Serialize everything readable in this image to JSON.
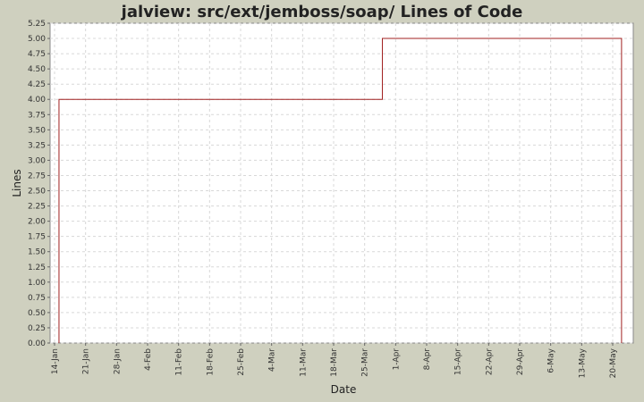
{
  "chart_data": {
    "type": "line",
    "title": "jalview: src/ext/jemboss/soap/ Lines of Code",
    "xlabel": "Date",
    "ylabel": "Lines",
    "ylim": [
      0,
      5.25
    ],
    "y_ticks": [
      "0.00",
      "0.25",
      "0.50",
      "0.75",
      "1.00",
      "1.25",
      "1.50",
      "1.75",
      "2.00",
      "2.25",
      "2.50",
      "2.75",
      "3.00",
      "3.25",
      "3.50",
      "3.75",
      "4.00",
      "4.25",
      "4.50",
      "4.75",
      "5.00",
      "5.25"
    ],
    "x_ticks": [
      "14-Jan",
      "21-Jan",
      "28-Jan",
      "4-Feb",
      "11-Feb",
      "18-Feb",
      "25-Feb",
      "4-Mar",
      "11-Mar",
      "18-Mar",
      "25-Mar",
      "1-Apr",
      "8-Apr",
      "15-Apr",
      "22-Apr",
      "29-Apr",
      "6-May",
      "13-May",
      "20-May"
    ],
    "grid": true,
    "step": true,
    "series": [
      {
        "color": "#a02020",
        "points": [
          {
            "x": "15-Jan",
            "y": 0
          },
          {
            "x": "15-Jan",
            "y": 4
          },
          {
            "x": "29-Mar",
            "y": 4
          },
          {
            "x": "29-Mar",
            "y": 5
          },
          {
            "x": "22-May",
            "y": 5
          },
          {
            "x": "22-May",
            "y": 0
          }
        ]
      }
    ]
  },
  "colors": {
    "background": "#cfd0bf",
    "plot_background": "#ffffff",
    "grid": "#d8d8d8",
    "series": "#a02020"
  }
}
